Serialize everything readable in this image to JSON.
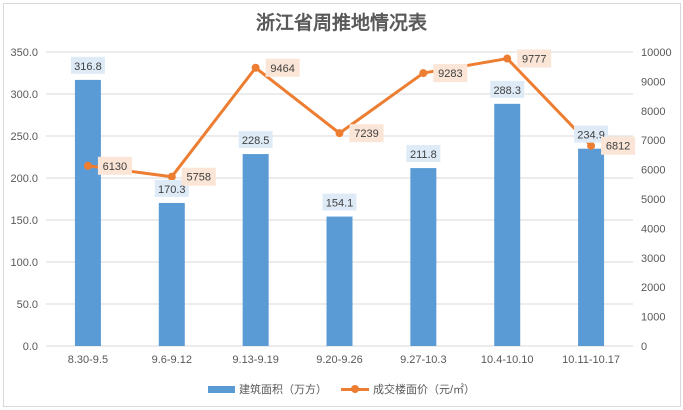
{
  "chart_data": {
    "type": "bar+line",
    "title": "浙江省周推地情况表",
    "categories": [
      "8.30-9.5",
      "9.6-9.12",
      "9.13-9.19",
      "9.20-9.26",
      "9.27-10.3",
      "10.4-10.10",
      "10.11-10.17"
    ],
    "series": [
      {
        "name": "建筑面积（万方）",
        "type": "bar",
        "axis": "left",
        "color": "#5b9bd5",
        "values": [
          316.8,
          170.3,
          228.5,
          154.1,
          211.8,
          288.3,
          234.9
        ],
        "labels": [
          "316.8",
          "170.3",
          "228.5",
          "154.1",
          "211.8",
          "288.3",
          "234.9"
        ]
      },
      {
        "name": "成交楼面价（元/㎡）",
        "type": "line",
        "axis": "right",
        "color": "#ed7d31",
        "values": [
          6130,
          5758,
          9464,
          7239,
          9283,
          9777,
          6812
        ],
        "labels": [
          "6130",
          "5758",
          "9464",
          "7239",
          "9283",
          "9777",
          "6812"
        ]
      }
    ],
    "y_left": {
      "range": [
        0,
        350
      ],
      "ticks": [
        "0.0",
        "50.0",
        "100.0",
        "150.0",
        "200.0",
        "250.0",
        "300.0",
        "350.0"
      ]
    },
    "y_right": {
      "range": [
        0,
        10000
      ],
      "ticks": [
        "0",
        "1000",
        "2000",
        "3000",
        "4000",
        "5000",
        "6000",
        "7000",
        "8000",
        "9000",
        "10000"
      ]
    },
    "grid": true,
    "legend": "bottom"
  }
}
